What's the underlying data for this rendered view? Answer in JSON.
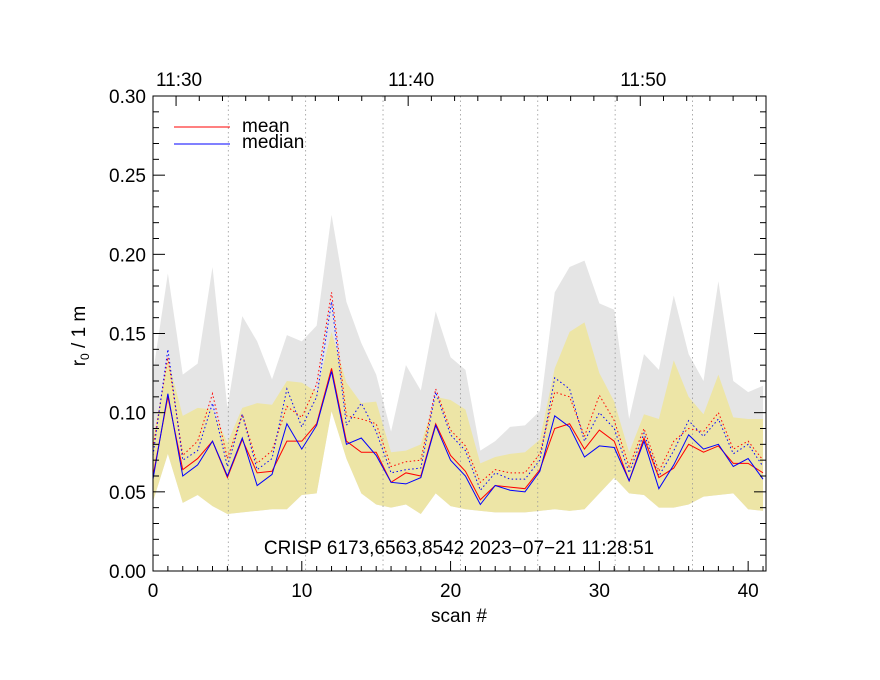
{
  "chart_data": {
    "type": "line",
    "title": "",
    "xlabel": "scan #",
    "ylabel": "r",
    "ylabel_subscript": "0",
    "ylabel_suffix": " / 1 m",
    "annotation": "CRISP 6173,6563,8542 2023−07−21 11:28:51",
    "xlim": [
      0,
      41.2
    ],
    "ylim": [
      0,
      0.3
    ],
    "x_ticks": [
      "0",
      "10",
      "20",
      "30",
      "40"
    ],
    "x_tick_values": [
      0,
      10,
      20,
      30,
      40
    ],
    "y_ticks": [
      "0.00",
      "0.05",
      "0.10",
      "0.15",
      "0.20",
      "0.25",
      "0.30"
    ],
    "y_tick_values": [
      0,
      0.05,
      0.1,
      0.15,
      0.2,
      0.25,
      0.3
    ],
    "top_axis": {
      "labels": [
        "11:30",
        "11:40",
        "11:50"
      ],
      "scan_positions": [
        1.55,
        17.15,
        32.75
      ]
    },
    "time_gridlines_scan": [
      5.06,
      10.26,
      15.46,
      20.66,
      25.86,
      31.06,
      36.26
    ],
    "grid": "dotted vertical time gridlines",
    "legend_position": "top-left",
    "colors": {
      "mean": "#ff0000",
      "median": "#0000ff",
      "envelope_outer": "#e5e5e5",
      "envelope_inner": "#ede5a6"
    },
    "x": [
      0,
      1,
      2,
      3,
      4,
      5,
      6,
      7,
      8,
      9,
      10,
      11,
      12,
      13,
      14,
      15,
      16,
      17,
      18,
      19,
      20,
      21,
      22,
      23,
      24,
      25,
      26,
      27,
      28,
      29,
      30,
      31,
      32,
      33,
      34,
      35,
      36,
      37,
      38,
      39,
      40,
      41
    ],
    "series": [
      {
        "name": "mean",
        "style": "solid",
        "color": "#ff0000",
        "values": [
          0.06,
          0.11,
          0.064,
          0.071,
          0.082,
          0.059,
          0.083,
          0.062,
          0.063,
          0.082,
          0.082,
          0.093,
          0.128,
          0.082,
          0.075,
          0.075,
          0.056,
          0.062,
          0.06,
          0.093,
          0.073,
          0.063,
          0.045,
          0.054,
          0.053,
          0.052,
          0.064,
          0.09,
          0.093,
          0.077,
          0.089,
          0.082,
          0.057,
          0.084,
          0.059,
          0.065,
          0.08,
          0.075,
          0.079,
          0.068,
          0.068,
          0.062
        ]
      },
      {
        "name": "median",
        "style": "solid",
        "color": "#0000ff",
        "values": [
          0.058,
          0.112,
          0.06,
          0.067,
          0.082,
          0.06,
          0.084,
          0.054,
          0.061,
          0.093,
          0.077,
          0.092,
          0.126,
          0.08,
          0.084,
          0.073,
          0.056,
          0.055,
          0.059,
          0.092,
          0.07,
          0.06,
          0.042,
          0.054,
          0.051,
          0.05,
          0.063,
          0.098,
          0.091,
          0.072,
          0.079,
          0.078,
          0.057,
          0.082,
          0.052,
          0.067,
          0.086,
          0.077,
          0.08,
          0.066,
          0.071,
          0.058
        ]
      },
      {
        "style": "dotted",
        "color": "#ff0000",
        "values": [
          0.078,
          0.135,
          0.073,
          0.082,
          0.112,
          0.071,
          0.099,
          0.068,
          0.076,
          0.104,
          0.097,
          0.118,
          0.176,
          0.098,
          0.096,
          0.093,
          0.066,
          0.069,
          0.07,
          0.115,
          0.089,
          0.079,
          0.056,
          0.064,
          0.062,
          0.062,
          0.074,
          0.113,
          0.11,
          0.085,
          0.111,
          0.095,
          0.066,
          0.09,
          0.063,
          0.082,
          0.09,
          0.088,
          0.1,
          0.077,
          0.082,
          0.07
        ]
      },
      {
        "style": "dotted",
        "color": "#0000ff",
        "values": [
          0.073,
          0.14,
          0.07,
          0.076,
          0.106,
          0.066,
          0.099,
          0.064,
          0.071,
          0.115,
          0.091,
          0.11,
          0.17,
          0.092,
          0.106,
          0.088,
          0.062,
          0.064,
          0.065,
          0.113,
          0.086,
          0.076,
          0.051,
          0.062,
          0.058,
          0.058,
          0.07,
          0.122,
          0.115,
          0.082,
          0.1,
          0.09,
          0.062,
          0.087,
          0.06,
          0.076,
          0.095,
          0.085,
          0.096,
          0.074,
          0.08,
          0.066
        ]
      }
    ],
    "bands": [
      {
        "name": "outer",
        "color": "#e5e5e5",
        "upper": [
          0.125,
          0.188,
          0.124,
          0.131,
          0.192,
          0.103,
          0.161,
          0.145,
          0.121,
          0.149,
          0.145,
          0.155,
          0.225,
          0.17,
          0.144,
          0.124,
          0.088,
          0.13,
          0.114,
          0.164,
          0.135,
          0.127,
          0.076,
          0.082,
          0.091,
          0.092,
          0.101,
          0.176,
          0.192,
          0.196,
          0.169,
          0.165,
          0.096,
          0.137,
          0.127,
          0.174,
          0.137,
          0.12,
          0.183,
          0.12,
          0.113,
          0.117
        ]
      },
      {
        "name": "inner",
        "color": "#ede5a6",
        "upper": [
          0.083,
          0.134,
          0.098,
          0.103,
          0.102,
          0.081,
          0.103,
          0.106,
          0.105,
          0.12,
          0.119,
          0.113,
          0.151,
          0.119,
          0.106,
          0.107,
          0.075,
          0.076,
          0.08,
          0.11,
          0.108,
          0.102,
          0.068,
          0.072,
          0.074,
          0.075,
          0.083,
          0.128,
          0.151,
          0.157,
          0.125,
          0.107,
          0.075,
          0.099,
          0.096,
          0.133,
          0.11,
          0.099,
          0.124,
          0.097,
          0.096,
          0.096
        ],
        "lower": [
          0.044,
          0.074,
          0.043,
          0.048,
          0.041,
          0.036,
          0.037,
          0.038,
          0.039,
          0.039,
          0.048,
          0.049,
          0.101,
          0.071,
          0.049,
          0.042,
          0.04,
          0.042,
          0.036,
          0.049,
          0.041,
          0.039,
          0.038,
          0.037,
          0.037,
          0.037,
          0.038,
          0.039,
          0.038,
          0.039,
          0.049,
          0.059,
          0.049,
          0.048,
          0.04,
          0.04,
          0.042,
          0.047,
          0.048,
          0.049,
          0.039,
          0.038
        ]
      }
    ]
  }
}
